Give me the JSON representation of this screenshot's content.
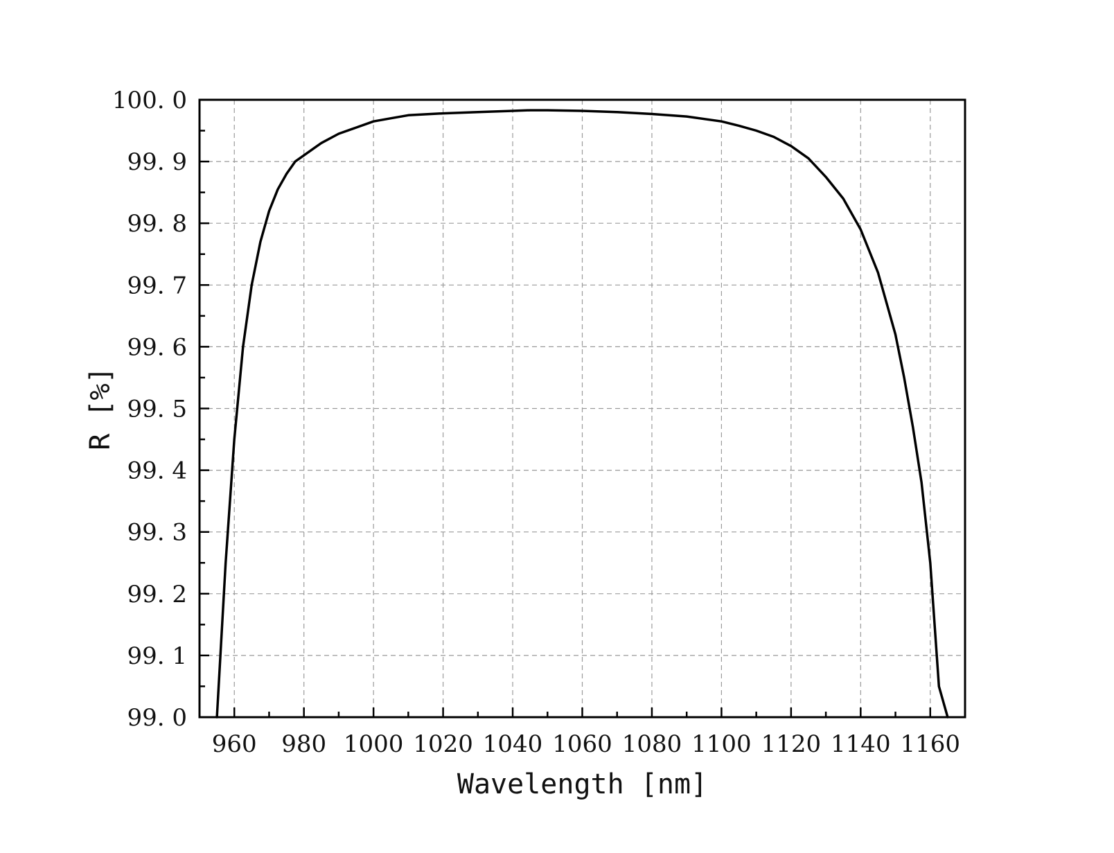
{
  "chart_data": {
    "type": "line",
    "title": "",
    "xlabel": "Wavelength [nm]",
    "ylabel": "R [%]",
    "xlim": [
      950,
      1170
    ],
    "ylim": [
      99.0,
      100.0
    ],
    "grid": true,
    "x_ticks": [
      {
        "value": 960,
        "label": "960"
      },
      {
        "value": 980,
        "label": "980"
      },
      {
        "value": 1000,
        "label": "1000"
      },
      {
        "value": 1020,
        "label": "1020"
      },
      {
        "value": 1040,
        "label": "1040"
      },
      {
        "value": 1060,
        "label": "1060"
      },
      {
        "value": 1080,
        "label": "1080"
      },
      {
        "value": 1100,
        "label": "1100"
      },
      {
        "value": 1120,
        "label": "1120"
      },
      {
        "value": 1140,
        "label": "1140"
      },
      {
        "value": 1160,
        "label": "1160"
      }
    ],
    "y_ticks": [
      {
        "value": 99.0,
        "label": "99. 0"
      },
      {
        "value": 99.1,
        "label": "99. 1"
      },
      {
        "value": 99.2,
        "label": "99. 2"
      },
      {
        "value": 99.3,
        "label": "99. 3"
      },
      {
        "value": 99.4,
        "label": "99. 4"
      },
      {
        "value": 99.5,
        "label": "99. 5"
      },
      {
        "value": 99.6,
        "label": "99. 6"
      },
      {
        "value": 99.7,
        "label": "99. 7"
      },
      {
        "value": 99.8,
        "label": "99. 8"
      },
      {
        "value": 99.9,
        "label": "99. 9"
      },
      {
        "value": 100.0,
        "label": "100. 0"
      }
    ],
    "series": [
      {
        "color": "#000000",
        "x": [
          955.0,
          957.5,
          960.0,
          962.5,
          965.0,
          967.5,
          970.0,
          972.5,
          975.0,
          977.5,
          980.0,
          982.5,
          985.0,
          990.0,
          995.0,
          1000.0,
          1005.0,
          1010.0,
          1020.0,
          1030.0,
          1040.0,
          1045.0,
          1050.0,
          1060.0,
          1070.0,
          1080.0,
          1090.0,
          1100.0,
          1105.0,
          1110.0,
          1115.0,
          1120.0,
          1125.0,
          1130.0,
          1135.0,
          1140.0,
          1145.0,
          1150.0,
          1152.5,
          1155.0,
          1157.5,
          1160.0,
          1162.5,
          1165.0
        ],
        "y": [
          99.0,
          99.25,
          99.45,
          99.6,
          99.7,
          99.77,
          99.82,
          99.855,
          99.88,
          99.9,
          99.91,
          99.92,
          99.93,
          99.945,
          99.955,
          99.965,
          99.97,
          99.975,
          99.978,
          99.98,
          99.982,
          99.983,
          99.983,
          99.982,
          99.98,
          99.977,
          99.973,
          99.965,
          99.958,
          99.95,
          99.94,
          99.925,
          99.905,
          99.875,
          99.84,
          99.79,
          99.72,
          99.62,
          99.55,
          99.47,
          99.38,
          99.25,
          99.05,
          99.0
        ]
      }
    ]
  }
}
